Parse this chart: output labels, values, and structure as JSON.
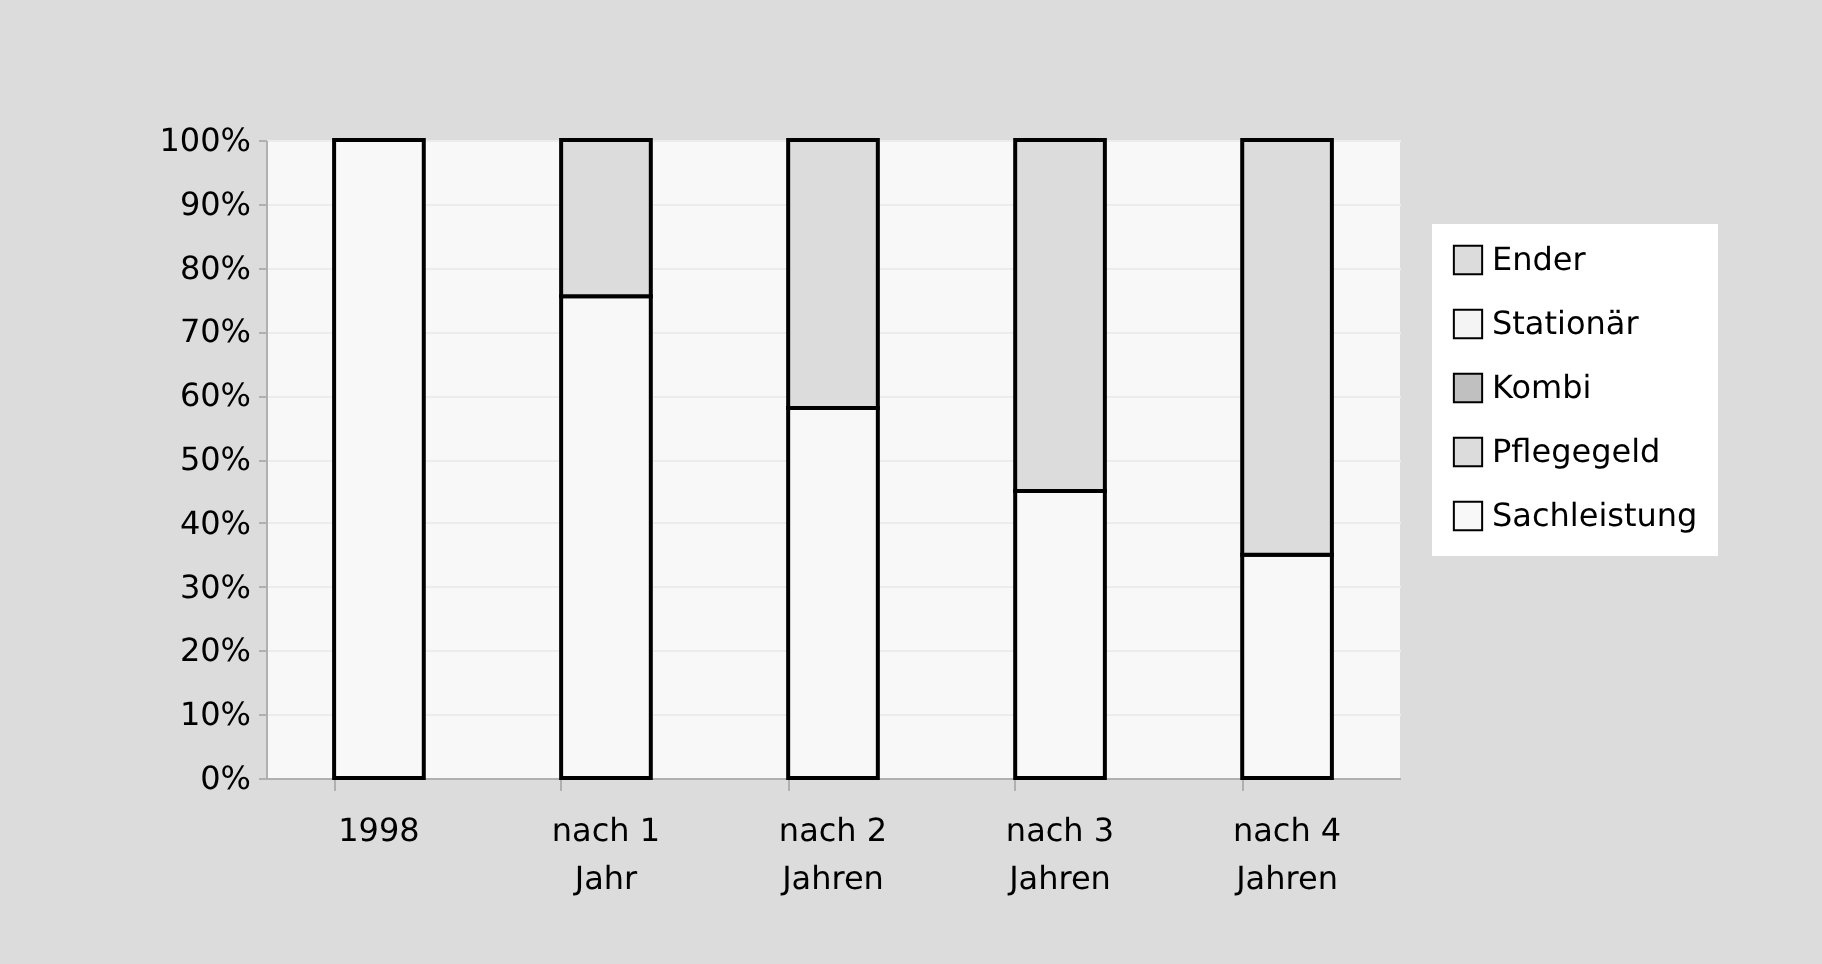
{
  "chart_data": {
    "type": "bar",
    "stacked": true,
    "categories": [
      "1998",
      "nach 1 Jahr",
      "nach 2 Jahren",
      "nach 3 Jahren",
      "nach 4 Jahren"
    ],
    "series": [
      {
        "name": "Sachleistung",
        "color": "#f8f8f8",
        "values": [
          100,
          75.5,
          58,
          45,
          35
        ]
      },
      {
        "name": "Pflegegeld",
        "color": "#dcdcdc",
        "values": [
          null,
          null,
          null,
          null,
          null
        ]
      },
      {
        "name": "Kombi",
        "color": "#c0c0c0",
        "values": [
          null,
          null,
          null,
          null,
          null
        ]
      },
      {
        "name": "Stationär",
        "color": "#f4f4f4",
        "values": [
          null,
          null,
          null,
          null,
          null
        ]
      },
      {
        "name": "Ender",
        "color": "#dcdcdc",
        "values": [
          null,
          24.5,
          42,
          55,
          65
        ]
      }
    ],
    "ylim": [
      0,
      100
    ],
    "yticks": [
      {
        "value": 0,
        "label": "0%"
      },
      {
        "value": 10,
        "label": "10%"
      },
      {
        "value": 20,
        "label": "20%"
      },
      {
        "value": 30,
        "label": "30%"
      },
      {
        "value": 40,
        "label": "40%"
      },
      {
        "value": 50,
        "label": "50%"
      },
      {
        "value": 60,
        "label": "60%"
      },
      {
        "value": 70,
        "label": "70%"
      },
      {
        "value": 80,
        "label": "80%"
      },
      {
        "value": 90,
        "label": "90%"
      },
      {
        "value": 100,
        "label": "100%"
      }
    ],
    "grid": "y",
    "legend": "right"
  }
}
